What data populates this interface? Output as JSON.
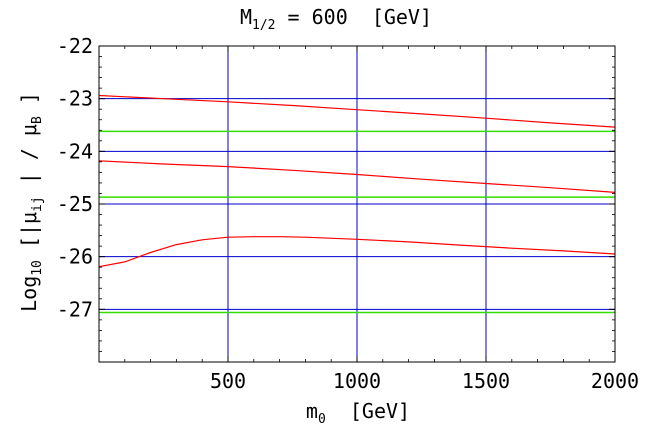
{
  "chart_data": {
    "type": "line",
    "title": {
      "main": "M",
      "sub": "1/2",
      "rest": " = 600  [GeV]"
    },
    "xlabel": {
      "main": "m",
      "sub": "0",
      "rest": "  [GeV]"
    },
    "ylabel": {
      "p1": "Log",
      "s1": "10",
      "p2": " [|",
      "mu1": "μ",
      "s2": "ij",
      "p3": " | / ",
      "mu2": "μ",
      "s3": "B",
      "p4": " ]"
    },
    "xlim": [
      0,
      2000
    ],
    "ylim": [
      -28,
      -22
    ],
    "x_ticks": [
      500,
      1000,
      1500,
      2000
    ],
    "y_ticks": [
      -22,
      -23,
      -24,
      -25,
      -26,
      -27
    ],
    "vertical_lines": [
      500,
      1000,
      1500
    ],
    "horizontal_lines_blue": [
      -23,
      -24,
      -25,
      -26,
      -27
    ],
    "horizontal_lines_green": [
      -23.62,
      -24.87,
      -27.06
    ],
    "colors": {
      "curve": "#ff0000",
      "blue_line": "#0000cc",
      "green_line": "#33dd00",
      "frame": "#000000"
    },
    "series": [
      {
        "x": [
          0,
          250,
          500,
          750,
          1000,
          1250,
          1500,
          1750,
          2000
        ],
        "values": [
          -22.94,
          -23.0,
          -23.06,
          -23.13,
          -23.21,
          -23.29,
          -23.37,
          -23.46,
          -23.54
        ]
      },
      {
        "x": [
          0,
          250,
          500,
          750,
          1000,
          1250,
          1500,
          1750,
          2000
        ],
        "values": [
          -24.18,
          -24.24,
          -24.29,
          -24.36,
          -24.44,
          -24.53,
          -24.61,
          -24.69,
          -24.78
        ]
      },
      {
        "x": [
          0,
          100,
          200,
          300,
          400,
          500,
          600,
          700,
          800,
          1000,
          1200,
          1400,
          1600,
          1800,
          2000
        ],
        "values": [
          -26.19,
          -26.1,
          -25.92,
          -25.77,
          -25.68,
          -25.63,
          -25.62,
          -25.62,
          -25.63,
          -25.67,
          -25.72,
          -25.78,
          -25.84,
          -25.89,
          -25.95
        ]
      }
    ]
  }
}
